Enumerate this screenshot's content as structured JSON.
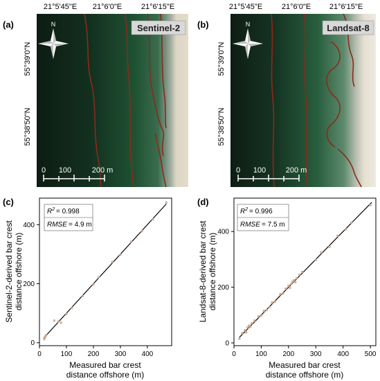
{
  "map_panels": [
    {
      "panel_label": "(a)",
      "sensor_label": "Sentinel-2",
      "lon_ticks": [
        "21°5'45\"E",
        "21°6'0\"E",
        "21°6'15\"E"
      ],
      "lat_ticks": [
        "55°39'0\"N",
        "55°38'50\"N"
      ],
      "north_label": "N",
      "scale_labels": [
        "0",
        "100",
        "200 m"
      ]
    },
    {
      "panel_label": "(b)",
      "sensor_label": "Landsat-8",
      "lon_ticks": [
        "21°5'45\"E",
        "21°6'0\"E",
        "21°6'15\"E"
      ],
      "lat_ticks": [
        "55°39'0\"N",
        "55°38'50\"N"
      ],
      "north_label": "N",
      "scale_labels": [
        "0",
        "100",
        "200 m"
      ]
    }
  ],
  "scatter_panels": [
    {
      "panel_label": "(c)",
      "r2_text": "= 0.998",
      "rmse_text": "= 4.9 m"
    },
    {
      "panel_label": "(d)",
      "r2_text": "= 0.996",
      "rmse_text": "= 7.5 m"
    }
  ],
  "colors": {
    "sea_dark": "#0f2219",
    "sea_green": "#1d4b30",
    "beach": "#ddd6c4",
    "crest_line": "#8b2a1c",
    "points": "#c9a98e",
    "fit_line": "#000000"
  },
  "chart_data": [
    {
      "type": "scatter",
      "panel": "(c)",
      "xlabel": "Measured bar crest\ndistance offshore (m)",
      "ylabel": "Sentinel-2-derived bar crest\ndistance offshore (m)",
      "xlim": [
        0,
        490
      ],
      "ylim": [
        -10,
        490
      ],
      "xticks": [
        0,
        100,
        200,
        300,
        400
      ],
      "yticks": [
        0,
        200,
        400
      ],
      "r2": 0.998,
      "rmse_m": 4.9,
      "fit_line": {
        "x": [
          15,
          470
        ],
        "y": [
          15,
          470
        ]
      },
      "points": [
        [
          18,
          12
        ],
        [
          20,
          18
        ],
        [
          22,
          22
        ],
        [
          25,
          26
        ],
        [
          55,
          75
        ],
        [
          70,
          72
        ],
        [
          80,
          68
        ],
        [
          100,
          97
        ],
        [
          120,
          118
        ],
        [
          160,
          158
        ],
        [
          200,
          198
        ],
        [
          220,
          222
        ],
        [
          270,
          274
        ],
        [
          300,
          298
        ],
        [
          340,
          342
        ],
        [
          380,
          378
        ],
        [
          420,
          418
        ],
        [
          470,
          475
        ]
      ]
    },
    {
      "type": "scatter",
      "panel": "(d)",
      "xlabel": "Measured bar crest\ndistance offshore (m)",
      "ylabel": "Landsat-8-derived bar crest\ndistance offshore (m)",
      "xlim": [
        0,
        520
      ],
      "ylim": [
        -10,
        520
      ],
      "xticks": [
        0,
        100,
        200,
        300,
        400,
        500
      ],
      "yticks": [
        0,
        200,
        400
      ],
      "r2": 0.996,
      "rmse_m": 7.5,
      "fit_line": {
        "x": [
          20,
          505
        ],
        "y": [
          20,
          505
        ]
      },
      "points": [
        [
          20,
          15
        ],
        [
          30,
          35
        ],
        [
          40,
          45
        ],
        [
          45,
          38
        ],
        [
          50,
          55
        ],
        [
          55,
          62
        ],
        [
          60,
          58
        ],
        [
          65,
          70
        ],
        [
          75,
          80
        ],
        [
          90,
          95
        ],
        [
          100,
          98
        ],
        [
          110,
          115
        ],
        [
          120,
          118
        ],
        [
          130,
          128
        ],
        [
          140,
          145
        ],
        [
          150,
          148
        ],
        [
          170,
          175
        ],
        [
          180,
          178
        ],
        [
          190,
          195
        ],
        [
          200,
          205
        ],
        [
          205,
          198
        ],
        [
          210,
          212
        ],
        [
          215,
          220
        ],
        [
          220,
          225
        ],
        [
          225,
          218
        ],
        [
          230,
          232
        ],
        [
          240,
          245
        ],
        [
          250,
          255
        ],
        [
          300,
          298
        ],
        [
          320,
          325
        ],
        [
          350,
          345
        ],
        [
          380,
          385
        ],
        [
          410,
          408
        ],
        [
          430,
          432
        ],
        [
          500,
          495
        ]
      ]
    }
  ]
}
